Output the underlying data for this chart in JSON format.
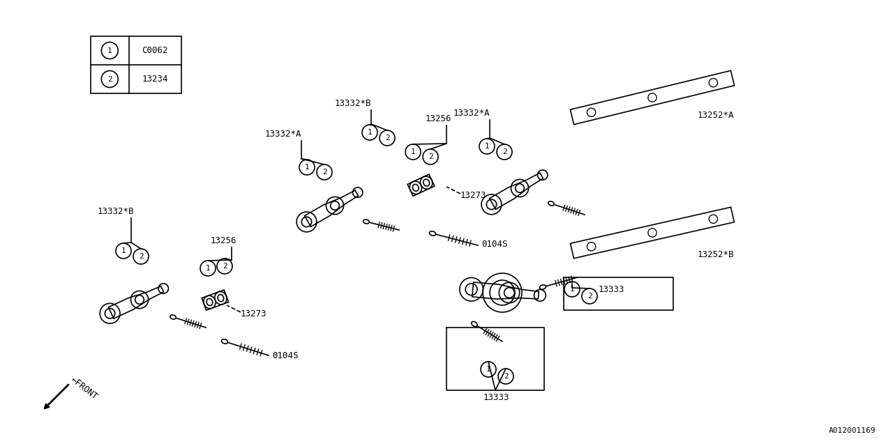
{
  "bg_color": "#ffffff",
  "line_color": "#000000",
  "fig_width": 12.8,
  "fig_height": 6.4,
  "legend_items": [
    {
      "num": "1",
      "code": "C0062"
    },
    {
      "num": "2",
      "code": "13234"
    }
  ]
}
